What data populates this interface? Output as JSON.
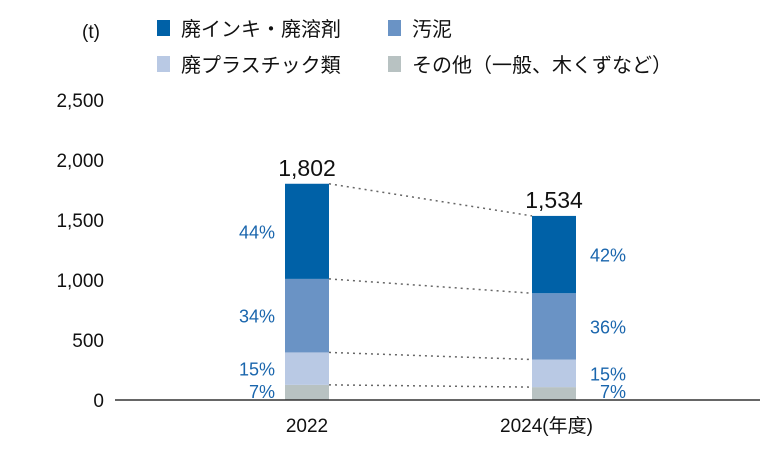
{
  "chart_data": {
    "type": "bar",
    "stacked": true,
    "unit_label": "(t)",
    "categories": [
      "2022",
      "2024"
    ],
    "category_suffix": "(年度)",
    "totals": [
      1802,
      1534
    ],
    "total_labels": [
      "1,802",
      "1,534"
    ],
    "series": [
      {
        "name": "その他（一般、木くずなど）",
        "color": "#b8c2c2",
        "percent": [
          7,
          7
        ]
      },
      {
        "name": "廃プラスチック類",
        "color": "#b9c9e4",
        "percent": [
          15,
          15
        ]
      },
      {
        "name": "汚泥",
        "color": "#6a93c5",
        "percent": [
          34,
          36
        ]
      },
      {
        "name": "廃インキ・廃溶剤",
        "color": "#0061a7",
        "percent": [
          44,
          42
        ]
      }
    ],
    "percent_labels": [
      [
        "7%",
        "15%",
        "34%",
        "44%"
      ],
      [
        "7%",
        "15%",
        "36%",
        "42%"
      ]
    ],
    "percent_label_color": "#1a66ad",
    "yticks": [
      "0",
      "500",
      "1,000",
      "1,500",
      "2,000",
      "2,500"
    ],
    "ytick_values": [
      0,
      500,
      1000,
      1500,
      2000,
      2500
    ],
    "ylim": [
      0,
      2500
    ],
    "grid": false,
    "connector_lines": "dotted",
    "legend_position": "top"
  }
}
